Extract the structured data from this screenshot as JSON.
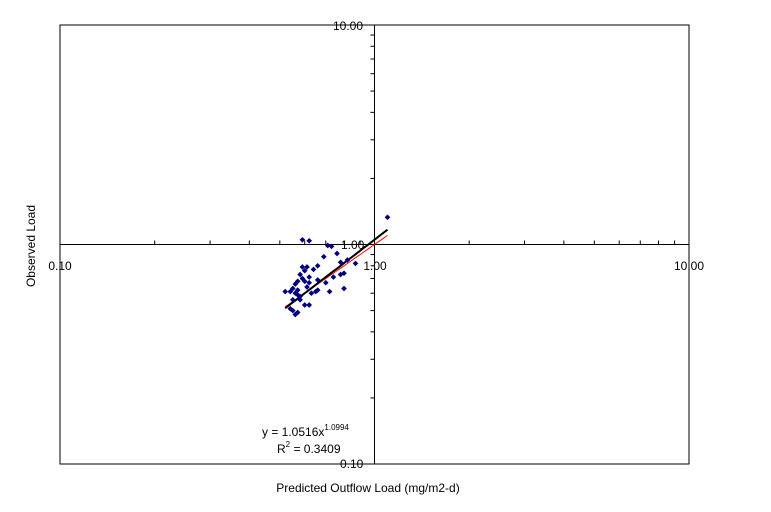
{
  "chart_data": {
    "type": "scatter",
    "xscale": "log",
    "yscale": "log",
    "xlim": [
      0.1,
      10
    ],
    "ylim": [
      0.1,
      10
    ],
    "xticks": [
      "0.10",
      "1.00",
      "10.00"
    ],
    "yticks": [
      "0.10",
      "1.00",
      "10.00"
    ],
    "xlabel": "Predicted Outflow Load  (mg/m2-d)",
    "ylabel": "Observed Load",
    "grid": false,
    "colors": {
      "points": "#000080",
      "trendline": "#000000",
      "reference_line": "#ff0000"
    },
    "points": [
      [
        0.59,
        1.05
      ],
      [
        0.62,
        1.04
      ],
      [
        1.1,
        1.33
      ],
      [
        0.71,
        0.99
      ],
      [
        0.73,
        0.98
      ],
      [
        0.76,
        0.91
      ],
      [
        0.69,
        0.88
      ],
      [
        0.82,
        0.85
      ],
      [
        0.87,
        0.82
      ],
      [
        0.78,
        0.83
      ],
      [
        0.66,
        0.8
      ],
      [
        0.61,
        0.79
      ],
      [
        0.64,
        0.77
      ],
      [
        0.59,
        0.79
      ],
      [
        0.6,
        0.76
      ],
      [
        0.58,
        0.73
      ],
      [
        0.62,
        0.71
      ],
      [
        0.59,
        0.7
      ],
      [
        0.57,
        0.68
      ],
      [
        0.6,
        0.68
      ],
      [
        0.62,
        0.67
      ],
      [
        0.66,
        0.69
      ],
      [
        0.7,
        0.67
      ],
      [
        0.74,
        0.71
      ],
      [
        0.8,
        0.74
      ],
      [
        0.78,
        0.73
      ],
      [
        0.56,
        0.66
      ],
      [
        0.55,
        0.63
      ],
      [
        0.57,
        0.62
      ],
      [
        0.61,
        0.64
      ],
      [
        0.63,
        0.6
      ],
      [
        0.65,
        0.61
      ],
      [
        0.57,
        0.59
      ],
      [
        0.54,
        0.61
      ],
      [
        0.52,
        0.61
      ],
      [
        0.56,
        0.6
      ],
      [
        0.58,
        0.56
      ],
      [
        0.55,
        0.56
      ],
      [
        0.6,
        0.53
      ],
      [
        0.62,
        0.53
      ],
      [
        0.58,
        0.58
      ],
      [
        0.66,
        0.62
      ],
      [
        0.72,
        0.61
      ],
      [
        0.8,
        0.63
      ],
      [
        0.55,
        0.5
      ],
      [
        0.56,
        0.48
      ],
      [
        0.57,
        0.49
      ],
      [
        0.54,
        0.51
      ]
    ],
    "trendline": {
      "type": "power",
      "a": 1.0516,
      "b": 1.0994,
      "x_range": [
        0.52,
        1.1
      ]
    },
    "reference_line": {
      "x_range": [
        0.52,
        1.1
      ],
      "comment_color": "red"
    },
    "equation": {
      "prefix": "y = 1.0516x",
      "exponent": "1.0994"
    },
    "r2": {
      "prefix": "R",
      "sup": "2",
      "suffix": " = 0.3409"
    }
  }
}
